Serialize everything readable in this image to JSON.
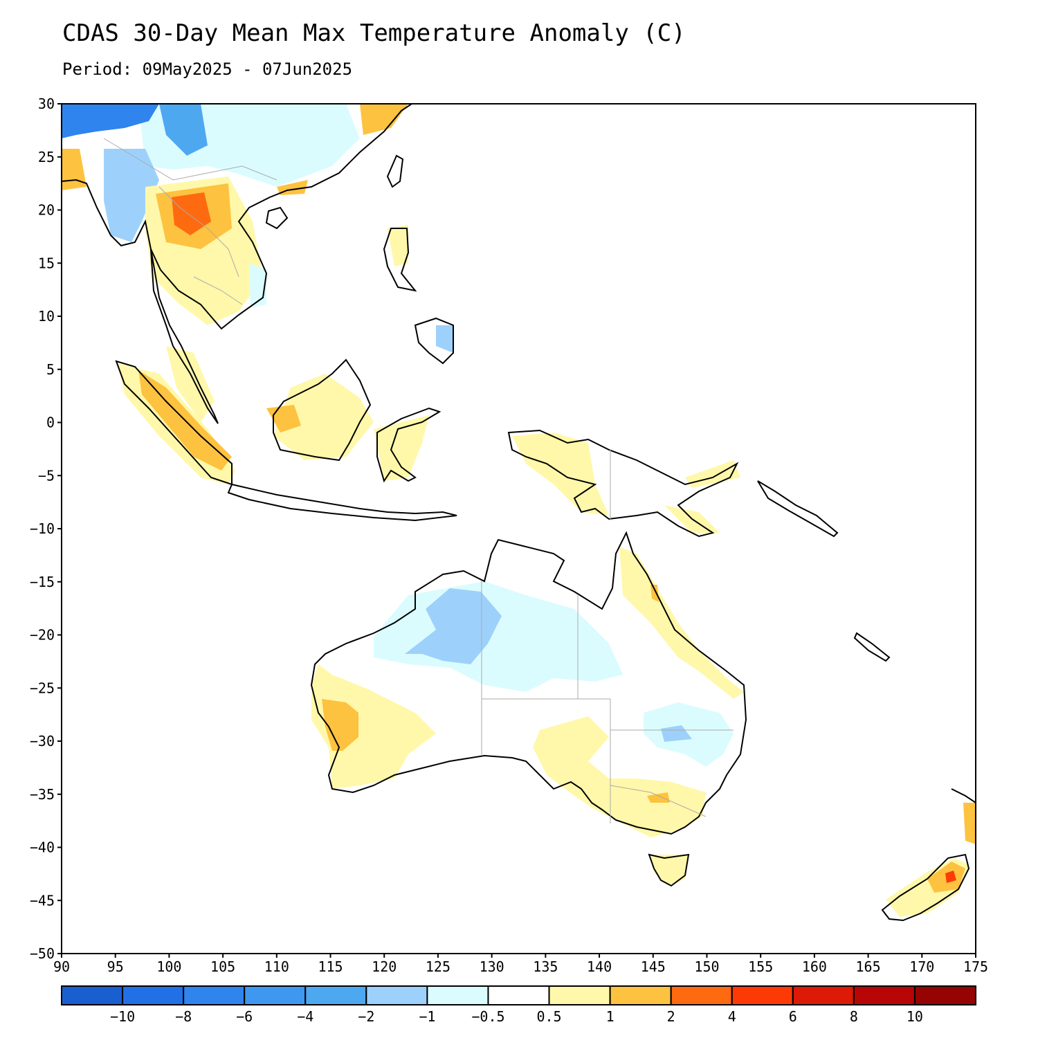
{
  "title": "CDAS 30-Day Mean Max Temperature Anomaly (C)",
  "subtitle": "Period: 09May2025 - 07Jun2025",
  "axes": {
    "lon_min": 90,
    "lon_max": 175,
    "lat_min": -50,
    "lat_max": 30,
    "lon_ticks": [
      "90",
      "95",
      "100",
      "105",
      "110",
      "115",
      "120",
      "125",
      "130",
      "135",
      "140",
      "145",
      "150",
      "155",
      "160",
      "165",
      "170",
      "175"
    ],
    "lat_ticks": [
      "30",
      "25",
      "20",
      "15",
      "10",
      "5",
      "0",
      "−5",
      "−10",
      "−15",
      "−20",
      "−25",
      "−30",
      "−35",
      "−40",
      "−45",
      "−50"
    ]
  },
  "colorbar": {
    "colors": [
      "#1a5fd0",
      "#2170e6",
      "#2f84ee",
      "#3f98f0",
      "#4ea8f0",
      "#9dd1fb",
      "#dbfcfe",
      "#ffffff",
      "#fff8aa",
      "#fdc23f",
      "#fd6a10",
      "#fd3a06",
      "#dc1a06",
      "#b80505",
      "#950303"
    ],
    "labels": [
      "−10",
      "−8",
      "−6",
      "−4",
      "−2",
      "−1",
      "−0.5",
      "0.5",
      "1",
      "2",
      "4",
      "6",
      "8",
      "10"
    ]
  },
  "anomaly_regions": [
    {
      "name": "Northern Laos/Thailand warm core",
      "color": "#fd6a10"
    },
    {
      "name": "Indochina warm",
      "color": "#fdc23f"
    },
    {
      "name": "Southern China cool",
      "color": "#dbfcfe"
    },
    {
      "name": "Yunnan/Myanmar cool",
      "color": "#9dd1fb"
    },
    {
      "name": "Tibet/Bangladesh cold",
      "color": "#2f84ee"
    },
    {
      "name": "Sumatra warm",
      "color": "#fdc23f"
    },
    {
      "name": "Borneo warm",
      "color": "#fdc23f"
    },
    {
      "name": "New Guinea warm",
      "color": "#fff8aa"
    },
    {
      "name": "NW Australia cool",
      "color": "#9dd1fb"
    },
    {
      "name": "SW Australia warm",
      "color": "#fdc23f"
    },
    {
      "name": "SE Australia warm",
      "color": "#fff8aa"
    },
    {
      "name": "Tasmania warm",
      "color": "#fff8aa"
    },
    {
      "name": "New Zealand warm",
      "color": "#fdc23f"
    }
  ]
}
